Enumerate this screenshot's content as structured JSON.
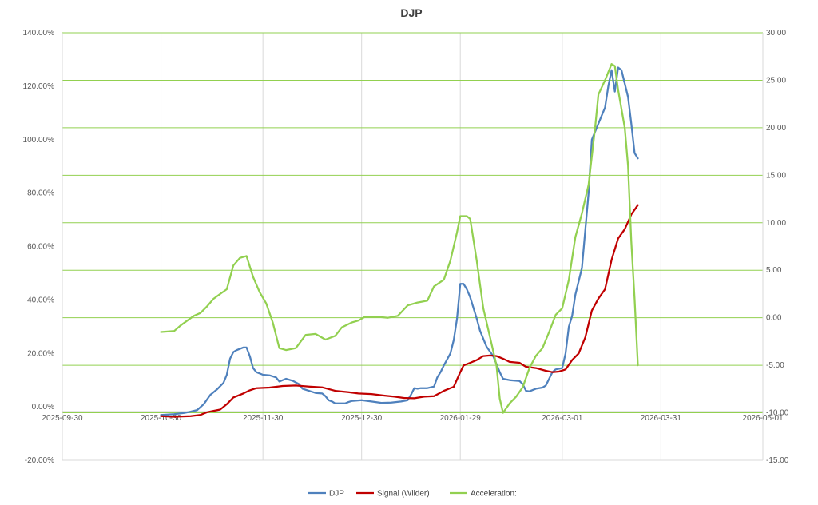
{
  "chart_data": {
    "type": "line",
    "title": "DJP",
    "xlabel": "",
    "ylabel": "",
    "x_axis": {
      "ticks": [
        "2025-09-30",
        "2025-10-30",
        "2025-11-30",
        "2025-12-30",
        "2026-01-29",
        "2026-03-01",
        "2026-03-31",
        "2026-05-01"
      ]
    },
    "y_left": {
      "ylim": [
        -0.2,
        1.4
      ],
      "ticks": [
        "-20.00%",
        "0.00%",
        "20.00%",
        "40.00%",
        "60.00%",
        "80.00%",
        "100.00%",
        "120.00%",
        "140.00%"
      ],
      "tick_values": [
        -0.2,
        0,
        0.2,
        0.4,
        0.6,
        0.8,
        1.0,
        1.2,
        1.4
      ]
    },
    "y_right": {
      "ylim": [
        -15,
        30
      ],
      "ticks": [
        "-15.00",
        "-10.00",
        "-5.00",
        "0.00",
        "5.00",
        "10.00",
        "15.00",
        "20.00",
        "25.00",
        "30.00"
      ],
      "tick_values": [
        -15,
        -10,
        -5,
        0,
        5,
        10,
        15,
        20,
        25,
        30
      ]
    },
    "grid": true,
    "legend_position": "bottom",
    "series": [
      {
        "name": "DJP",
        "axis": "left",
        "color": "#4F81BD",
        "points": [
          [
            "2025-10-30",
            -0.03
          ],
          [
            "2025-11-03",
            -0.027
          ],
          [
            "2025-11-06",
            -0.023
          ],
          [
            "2025-11-08",
            -0.018
          ],
          [
            "2025-11-10",
            -0.012
          ],
          [
            "2025-11-12",
            0.01
          ],
          [
            "2025-11-14",
            0.045
          ],
          [
            "2025-11-16",
            0.065
          ],
          [
            "2025-11-18",
            0.09
          ],
          [
            "2025-11-19",
            0.12
          ],
          [
            "2025-11-20",
            0.18
          ],
          [
            "2025-11-21",
            0.205
          ],
          [
            "2025-11-22",
            0.212
          ],
          [
            "2025-11-24",
            0.222
          ],
          [
            "2025-11-25",
            0.222
          ],
          [
            "2025-11-26",
            0.19
          ],
          [
            "2025-11-27",
            0.145
          ],
          [
            "2025-11-28",
            0.13
          ],
          [
            "2025-11-30",
            0.12
          ],
          [
            "2025-12-02",
            0.118
          ],
          [
            "2025-12-04",
            0.11
          ],
          [
            "2025-12-05",
            0.095
          ],
          [
            "2025-12-07",
            0.105
          ],
          [
            "2025-12-09",
            0.098
          ],
          [
            "2025-12-11",
            0.085
          ],
          [
            "2025-12-12",
            0.068
          ],
          [
            "2025-12-14",
            0.06
          ],
          [
            "2025-12-16",
            0.052
          ],
          [
            "2025-12-18",
            0.05
          ],
          [
            "2025-12-19",
            0.04
          ],
          [
            "2025-12-20",
            0.025
          ],
          [
            "2025-12-21",
            0.02
          ],
          [
            "2025-12-22",
            0.013
          ],
          [
            "2025-12-25",
            0.013
          ],
          [
            "2025-12-26",
            0.018
          ],
          [
            "2025-12-27",
            0.022
          ],
          [
            "2025-12-30",
            0.025
          ],
          [
            "2026-01-02",
            0.02
          ],
          [
            "2026-01-05",
            0.015
          ],
          [
            "2026-01-08",
            0.016
          ],
          [
            "2026-01-11",
            0.02
          ],
          [
            "2026-01-13",
            0.025
          ],
          [
            "2026-01-14",
            0.045
          ],
          [
            "2026-01-15",
            0.07
          ],
          [
            "2026-01-16",
            0.068
          ],
          [
            "2026-01-17",
            0.07
          ],
          [
            "2026-01-19",
            0.07
          ],
          [
            "2026-01-21",
            0.076
          ],
          [
            "2026-01-22",
            0.11
          ],
          [
            "2026-01-23",
            0.13
          ],
          [
            "2026-01-24",
            0.155
          ],
          [
            "2026-01-26",
            0.2
          ],
          [
            "2026-01-27",
            0.25
          ],
          [
            "2026-01-28",
            0.33
          ],
          [
            "2026-01-29",
            0.46
          ],
          [
            "2026-01-30",
            0.46
          ],
          [
            "2026-01-31",
            0.44
          ],
          [
            "2026-02-01",
            0.41
          ],
          [
            "2026-02-03",
            0.33
          ],
          [
            "2026-02-04",
            0.285
          ],
          [
            "2026-02-05",
            0.255
          ],
          [
            "2026-02-06",
            0.225
          ],
          [
            "2026-02-08",
            0.19
          ],
          [
            "2026-02-10",
            0.13
          ],
          [
            "2026-02-11",
            0.105
          ],
          [
            "2026-02-13",
            0.1
          ],
          [
            "2026-02-16",
            0.097
          ],
          [
            "2026-02-17",
            0.085
          ],
          [
            "2026-02-18",
            0.06
          ],
          [
            "2026-02-19",
            0.058
          ],
          [
            "2026-02-21",
            0.068
          ],
          [
            "2026-02-23",
            0.072
          ],
          [
            "2026-02-24",
            0.08
          ],
          [
            "2026-02-26",
            0.13
          ],
          [
            "2026-02-27",
            0.14
          ],
          [
            "2026-03-01",
            0.145
          ],
          [
            "2026-03-02",
            0.2
          ],
          [
            "2026-03-03",
            0.3
          ],
          [
            "2026-03-04",
            0.34
          ],
          [
            "2026-03-05",
            0.42
          ],
          [
            "2026-03-07",
            0.52
          ],
          [
            "2026-03-09",
            0.8
          ],
          [
            "2026-03-10",
            1.0
          ],
          [
            "2026-03-12",
            1.06
          ],
          [
            "2026-03-14",
            1.12
          ],
          [
            "2026-03-15",
            1.2
          ],
          [
            "2026-03-16",
            1.26
          ],
          [
            "2026-03-17",
            1.18
          ],
          [
            "2026-03-18",
            1.27
          ],
          [
            "2026-03-19",
            1.26
          ],
          [
            "2026-03-21",
            1.16
          ],
          [
            "2026-03-22",
            1.06
          ],
          [
            "2026-03-23",
            0.95
          ],
          [
            "2026-03-24",
            0.93
          ]
        ]
      },
      {
        "name": "Signal (Wilder)",
        "axis": "left",
        "color": "#C00000",
        "points": [
          [
            "2025-10-30",
            -0.035
          ],
          [
            "2025-11-03",
            -0.037
          ],
          [
            "2025-11-08",
            -0.035
          ],
          [
            "2025-11-11",
            -0.03
          ],
          [
            "2025-11-13",
            -0.02
          ],
          [
            "2025-11-15",
            -0.015
          ],
          [
            "2025-11-17",
            -0.01
          ],
          [
            "2025-11-19",
            0.01
          ],
          [
            "2025-11-21",
            0.035
          ],
          [
            "2025-11-24",
            0.05
          ],
          [
            "2025-11-26",
            0.062
          ],
          [
            "2025-11-28",
            0.07
          ],
          [
            "2025-12-02",
            0.072
          ],
          [
            "2025-12-06",
            0.078
          ],
          [
            "2025-12-10",
            0.08
          ],
          [
            "2025-12-14",
            0.076
          ],
          [
            "2025-12-18",
            0.073
          ],
          [
            "2025-12-22",
            0.06
          ],
          [
            "2025-12-26",
            0.055
          ],
          [
            "2025-12-29",
            0.05
          ],
          [
            "2026-01-02",
            0.048
          ],
          [
            "2026-01-06",
            0.042
          ],
          [
            "2026-01-09",
            0.038
          ],
          [
            "2026-01-12",
            0.033
          ],
          [
            "2026-01-15",
            0.032
          ],
          [
            "2026-01-18",
            0.038
          ],
          [
            "2026-01-21",
            0.04
          ],
          [
            "2026-01-24",
            0.06
          ],
          [
            "2026-01-27",
            0.075
          ],
          [
            "2026-01-29",
            0.13
          ],
          [
            "2026-01-30",
            0.155
          ],
          [
            "2026-02-01",
            0.165
          ],
          [
            "2026-02-03",
            0.175
          ],
          [
            "2026-02-05",
            0.19
          ],
          [
            "2026-02-07",
            0.192
          ],
          [
            "2026-02-09",
            0.19
          ],
          [
            "2026-02-11",
            0.18
          ],
          [
            "2026-02-13",
            0.168
          ],
          [
            "2026-02-16",
            0.165
          ],
          [
            "2026-02-18",
            0.15
          ],
          [
            "2026-02-21",
            0.145
          ],
          [
            "2026-02-24",
            0.135
          ],
          [
            "2026-02-26",
            0.13
          ],
          [
            "2026-02-28",
            0.132
          ],
          [
            "2026-03-02",
            0.14
          ],
          [
            "2026-03-04",
            0.175
          ],
          [
            "2026-03-06",
            0.2
          ],
          [
            "2026-03-08",
            0.26
          ],
          [
            "2026-03-10",
            0.36
          ],
          [
            "2026-03-12",
            0.405
          ],
          [
            "2026-03-14",
            0.44
          ],
          [
            "2026-03-16",
            0.55
          ],
          [
            "2026-03-18",
            0.63
          ],
          [
            "2026-03-20",
            0.665
          ],
          [
            "2026-03-22",
            0.72
          ],
          [
            "2026-03-24",
            0.755
          ]
        ]
      },
      {
        "name": "Acceleration:",
        "axis": "right",
        "color": "#92D050",
        "points": [
          [
            "2025-10-30",
            -1.5
          ],
          [
            "2025-11-03",
            -1.4
          ],
          [
            "2025-11-05",
            -0.8
          ],
          [
            "2025-11-07",
            -0.3
          ],
          [
            "2025-11-09",
            0.2
          ],
          [
            "2025-11-11",
            0.5
          ],
          [
            "2025-11-13",
            1.2
          ],
          [
            "2025-11-15",
            2.0
          ],
          [
            "2025-11-17",
            2.5
          ],
          [
            "2025-11-19",
            3.0
          ],
          [
            "2025-11-21",
            5.5
          ],
          [
            "2025-11-23",
            6.3
          ],
          [
            "2025-11-25",
            6.5
          ],
          [
            "2025-11-27",
            4.3
          ],
          [
            "2025-11-29",
            2.7
          ],
          [
            "2025-12-01",
            1.5
          ],
          [
            "2025-12-03",
            -0.5
          ],
          [
            "2025-12-05",
            -3.2
          ],
          [
            "2025-12-07",
            -3.4
          ],
          [
            "2025-12-10",
            -3.2
          ],
          [
            "2025-12-13",
            -1.8
          ],
          [
            "2025-12-16",
            -1.7
          ],
          [
            "2025-12-19",
            -2.3
          ],
          [
            "2025-12-22",
            -1.9
          ],
          [
            "2025-12-24",
            -1.0
          ],
          [
            "2025-12-27",
            -0.5
          ],
          [
            "2025-12-29",
            -0.3
          ],
          [
            "2025-12-31",
            0.1
          ],
          [
            "2026-01-04",
            0.1
          ],
          [
            "2026-01-07",
            0.0
          ],
          [
            "2026-01-10",
            0.2
          ],
          [
            "2026-01-13",
            1.3
          ],
          [
            "2026-01-16",
            1.6
          ],
          [
            "2026-01-19",
            1.8
          ],
          [
            "2026-01-21",
            3.3
          ],
          [
            "2026-01-24",
            4.0
          ],
          [
            "2026-01-26",
            6.0
          ],
          [
            "2026-01-28",
            9.0
          ],
          [
            "2026-01-29",
            10.7
          ],
          [
            "2026-01-31",
            10.7
          ],
          [
            "2026-02-01",
            10.4
          ],
          [
            "2026-02-03",
            6.0
          ],
          [
            "2026-02-05",
            1.0
          ],
          [
            "2026-02-07",
            -2.0
          ],
          [
            "2026-02-09",
            -5.0
          ],
          [
            "2026-02-10",
            -8.5
          ],
          [
            "2026-02-11",
            -10.0
          ],
          [
            "2026-02-13",
            -9.0
          ],
          [
            "2026-02-15",
            -8.3
          ],
          [
            "2026-02-17",
            -7.3
          ],
          [
            "2026-02-19",
            -5.3
          ],
          [
            "2026-02-21",
            -4.0
          ],
          [
            "2026-02-23",
            -3.2
          ],
          [
            "2026-02-25",
            -1.5
          ],
          [
            "2026-02-27",
            0.3
          ],
          [
            "2026-03-01",
            1.0
          ],
          [
            "2026-03-03",
            4.0
          ],
          [
            "2026-03-05",
            8.5
          ],
          [
            "2026-03-07",
            11.0
          ],
          [
            "2026-03-09",
            14.0
          ],
          [
            "2026-03-11",
            20.0
          ],
          [
            "2026-03-12",
            23.5
          ],
          [
            "2026-03-14",
            25.0
          ],
          [
            "2026-03-16",
            26.7
          ],
          [
            "2026-03-17",
            26.5
          ],
          [
            "2026-03-18",
            24.0
          ],
          [
            "2026-03-20",
            20.0
          ],
          [
            "2026-03-21",
            16.0
          ],
          [
            "2026-03-22",
            8.0
          ],
          [
            "2026-03-23",
            2.0
          ],
          [
            "2026-03-24",
            -5.0
          ]
        ]
      }
    ]
  }
}
